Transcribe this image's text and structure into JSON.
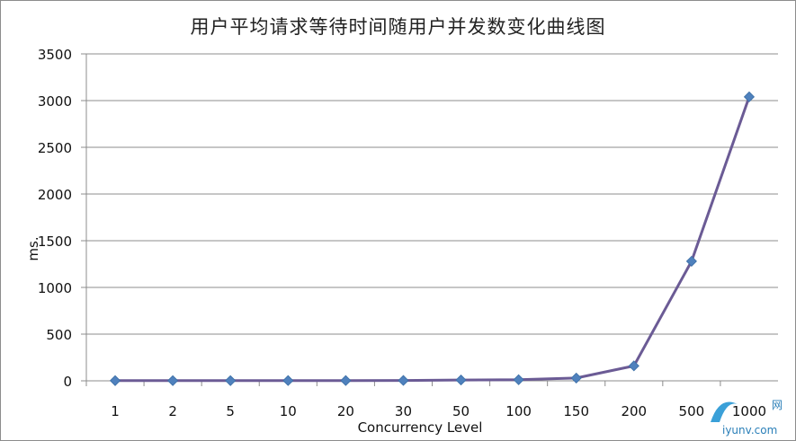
{
  "chart_data": {
    "type": "line",
    "title": "用户平均请求等待时间随用户并发数变化曲线图",
    "xlabel": "Concurrency Level",
    "ylabel": "ms.",
    "categories": [
      "1",
      "2",
      "5",
      "10",
      "20",
      "30",
      "50",
      "100",
      "150",
      "200",
      "500",
      "1000"
    ],
    "series": [
      {
        "values": [
          2,
          2,
          2,
          3,
          3,
          4,
          9,
          12,
          30,
          160,
          1280,
          3040
        ]
      }
    ],
    "ylim": [
      0,
      3500
    ],
    "yticks": [
      0,
      500,
      1000,
      1500,
      2000,
      2500,
      3000,
      3500
    ],
    "grid": true,
    "legend": "none",
    "colors": {
      "line": "#6b5b95",
      "marker": "#4f81bd",
      "grid": "#8c8c8c",
      "watermark": "#2a7fb8"
    }
  },
  "watermark": {
    "text": "iyunv.com",
    "suffix": "网"
  }
}
